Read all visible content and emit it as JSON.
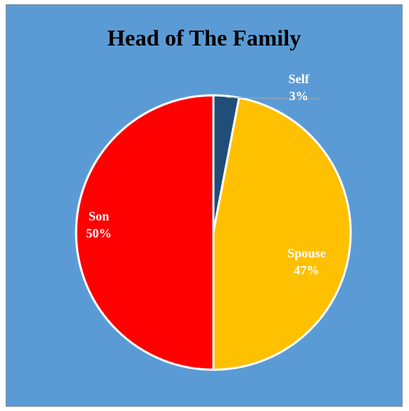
{
  "chart_data": {
    "type": "pie",
    "title": "Head of The Family",
    "slices": [
      {
        "name": "Self",
        "value": 3,
        "label": "3%",
        "color": "#1f4e79"
      },
      {
        "name": "Spouse",
        "value": 47,
        "label": "47%",
        "color": "#ffc000"
      },
      {
        "name": "Son",
        "value": 50,
        "label": "50%",
        "color": "#ff0000"
      }
    ],
    "background_color": "#5b9bd5",
    "slice_border_color": "#ffffff",
    "legend": "none",
    "data_labels": "category and percentage"
  }
}
